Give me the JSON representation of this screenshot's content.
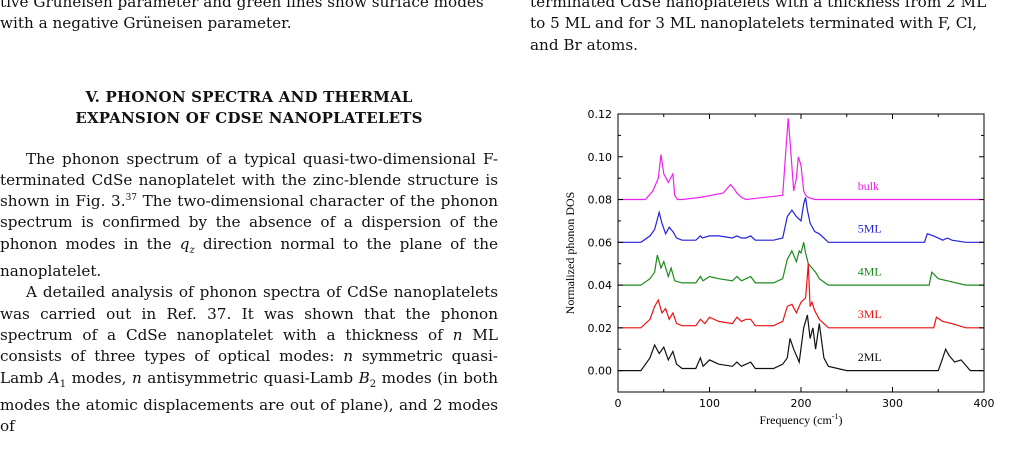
{
  "left_column": {
    "top_lines": [
      "tive Grüneisen parameter and green lines show surface modes",
      "with a negative Grüneisen parameter."
    ],
    "heading_line1": "V.   PHONON SPECTRA AND THERMAL",
    "heading_line2": "EXPANSION OF CDSE NANOPLATELETS",
    "p1": {
      "a": "The phonon spectrum of a typical quasi-two-dimensional F-terminated CdSe nanoplatelet with the zinc-blende structure is shown in Fig. 3.",
      "ref": "37",
      "b": " The two-dimensional character of the phonon spectrum is confirmed by the absence of a dispersion of the phonon modes in the ",
      "math": "q",
      "math_sub": "z",
      "c": " direction normal to the plane of the nanoplatelet."
    },
    "p2": {
      "a": "A detailed analysis of phonon spectra of CdSe nanoplatelets was carried out in Ref. 37. It was shown that the phonon spectrum of a CdSe nanoplatelet with a thickness of ",
      "n1": "n",
      "b": " ML consists of three types of optical modes: ",
      "n2": "n",
      "c": " symmetric quasi-Lamb ",
      "A": "A",
      "A_sub": "1",
      "d": " modes, ",
      "n3": "n",
      "e": " antisymmetric quasi-Lamb ",
      "B": "B",
      "B_sub": "2",
      "f": " modes (in both modes the atomic displacements are out of plane), and 2 modes of"
    }
  },
  "right_column": {
    "top_lines": [
      "terminated CdSe nanoplatelets with a thickness from 2 ML",
      "to 5 ML and for 3 ML nanoplatelets terminated with F, Cl,",
      "and Br atoms."
    ]
  },
  "chart_data": {
    "type": "line",
    "xlabel": "Frequency  (cm",
    "xlabel_sup": "-1",
    "xlabel_end": ")",
    "ylabel": "Normalized phonon DOS",
    "xlim": [
      0,
      400
    ],
    "ylim": [
      -0.01,
      0.12
    ],
    "xticks": [
      "0",
      "100",
      "200",
      "300",
      "400"
    ],
    "yticks": [
      "0.00",
      "0.02",
      "0.04",
      "0.06",
      "0.08",
      "0.10",
      "0.12"
    ],
    "grid": false,
    "series": [
      {
        "name": "bulk",
        "color": "#ee22ee",
        "offset": 0.08,
        "x": [
          0,
          30,
          38,
          44,
          47,
          50,
          55,
          60,
          62,
          65,
          70,
          90,
          115,
          123,
          127,
          130,
          135,
          140,
          180,
          183,
          186,
          189,
          192,
          195,
          197,
          200,
          203,
          205,
          208,
          215,
          240,
          400
        ],
        "y": [
          0,
          0,
          0.004,
          0.01,
          0.021,
          0.012,
          0.008,
          0.012,
          0.002,
          0,
          0,
          0.001,
          0.003,
          0.007,
          0.005,
          0.003,
          0.001,
          0,
          0.002,
          0.02,
          0.038,
          0.022,
          0.004,
          0.01,
          0.02,
          0.016,
          0.004,
          0.002,
          0.001,
          0,
          0,
          0
        ]
      },
      {
        "name": "5ML",
        "color": "#2222dd",
        "offset": 0.06,
        "x": [
          0,
          25,
          35,
          40,
          45,
          48,
          52,
          56,
          60,
          64,
          70,
          85,
          90,
          92,
          100,
          110,
          125,
          130,
          135,
          140,
          145,
          150,
          170,
          180,
          185,
          190,
          195,
          200,
          203,
          205,
          207,
          210,
          215,
          220,
          230,
          335,
          338,
          345,
          355,
          360,
          365,
          380,
          400
        ],
        "y": [
          0,
          0,
          0.003,
          0.006,
          0.014,
          0.009,
          0.004,
          0.007,
          0.005,
          0.002,
          0.001,
          0.001,
          0.003,
          0.002,
          0.003,
          0.003,
          0.002,
          0.003,
          0.002,
          0.002,
          0.003,
          0.001,
          0.001,
          0.002,
          0.012,
          0.015,
          0.012,
          0.01,
          0.018,
          0.021,
          0.015,
          0.009,
          0.005,
          0.004,
          0,
          0,
          0.004,
          0.003,
          0.001,
          0.002,
          0.001,
          0,
          0
        ]
      },
      {
        "name": "4ML",
        "color": "#1e8a1e",
        "offset": 0.04,
        "x": [
          0,
          25,
          35,
          40,
          43,
          47,
          50,
          55,
          58,
          62,
          70,
          85,
          90,
          93,
          100,
          110,
          125,
          130,
          135,
          140,
          145,
          150,
          170,
          180,
          185,
          190,
          195,
          198,
          200,
          203,
          205,
          208,
          212,
          216,
          220,
          230,
          340,
          343,
          350,
          360,
          380,
          400
        ],
        "y": [
          0,
          0,
          0.003,
          0.006,
          0.014,
          0.008,
          0.011,
          0.004,
          0.008,
          0.002,
          0.001,
          0.001,
          0.004,
          0.002,
          0.004,
          0.003,
          0.002,
          0.004,
          0.002,
          0.003,
          0.004,
          0.001,
          0.001,
          0.003,
          0.012,
          0.016,
          0.011,
          0.016,
          0.015,
          0.02,
          0.015,
          0.01,
          0.008,
          0.006,
          0.003,
          0,
          0,
          0.006,
          0.003,
          0.002,
          0,
          0
        ]
      },
      {
        "name": "3ML",
        "color": "#ee1111",
        "offset": 0.02,
        "x": [
          0,
          25,
          35,
          40,
          44,
          48,
          52,
          56,
          60,
          64,
          70,
          85,
          90,
          95,
          100,
          110,
          125,
          130,
          135,
          140,
          145,
          150,
          170,
          180,
          185,
          190,
          195,
          200,
          205,
          208,
          210,
          212,
          215,
          220,
          230,
          345,
          348,
          355,
          365,
          380,
          400
        ],
        "y": [
          0,
          0,
          0.004,
          0.01,
          0.013,
          0.007,
          0.009,
          0.004,
          0.007,
          0.002,
          0.001,
          0.001,
          0.004,
          0.002,
          0.005,
          0.003,
          0.002,
          0.005,
          0.003,
          0.004,
          0.004,
          0.001,
          0.001,
          0.003,
          0.01,
          0.011,
          0.007,
          0.012,
          0.014,
          0.03,
          0.01,
          0.012,
          0.008,
          0.004,
          0,
          0,
          0.005,
          0.003,
          0.002,
          0,
          0
        ]
      },
      {
        "name": "2ML",
        "color": "#111111",
        "offset": 0.0,
        "x": [
          0,
          25,
          35,
          40,
          45,
          50,
          55,
          60,
          64,
          70,
          85,
          90,
          93,
          100,
          110,
          125,
          130,
          135,
          140,
          145,
          150,
          170,
          180,
          185,
          188,
          192,
          198,
          203,
          207,
          210,
          213,
          216,
          220,
          225,
          230,
          250,
          350,
          355,
          358,
          362,
          368,
          375,
          385,
          400
        ],
        "y": [
          0,
          0,
          0.006,
          0.012,
          0.008,
          0.011,
          0.005,
          0.009,
          0.003,
          0.001,
          0.001,
          0.006,
          0.002,
          0.005,
          0.003,
          0.002,
          0.004,
          0.002,
          0.003,
          0.004,
          0.001,
          0.001,
          0.003,
          0.006,
          0.015,
          0.01,
          0.004,
          0.02,
          0.026,
          0.015,
          0.02,
          0.01,
          0.022,
          0.006,
          0.002,
          0,
          0,
          0.006,
          0.01,
          0.007,
          0.004,
          0.005,
          0,
          0
        ]
      }
    ]
  }
}
